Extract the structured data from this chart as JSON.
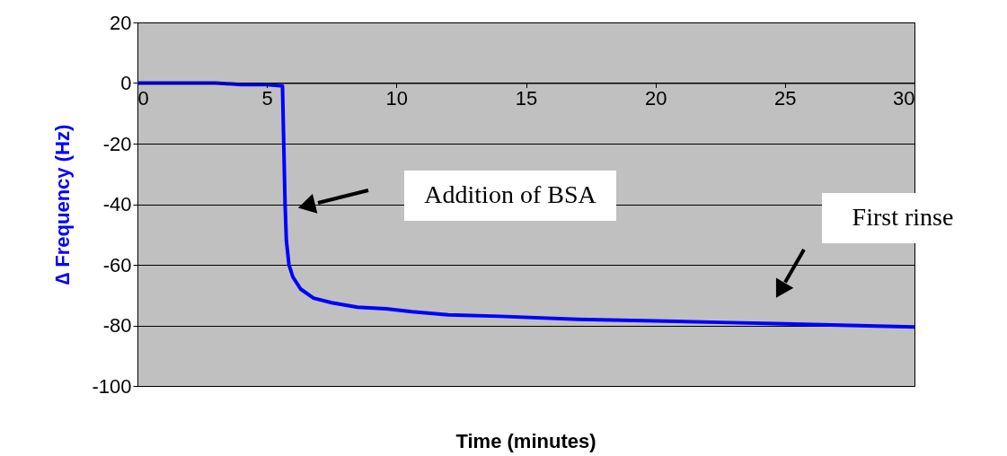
{
  "chart_data": {
    "type": "line",
    "xlabel": "Time (minutes)",
    "ylabel": "∆ Frequency (Hz)",
    "x": [
      0,
      1,
      2,
      3,
      4,
      5,
      5.6,
      5.7,
      5.75,
      5.85,
      6.0,
      6.3,
      6.8,
      7.5,
      8.5,
      9.6,
      10.6,
      12,
      14,
      17,
      20,
      22.5,
      25,
      27.5,
      30
    ],
    "series": [
      {
        "color": "#0000ff",
        "values": [
          0,
          0,
          0,
          0,
          -0.5,
          -0.5,
          -1,
          -40,
          -52,
          -60,
          -64,
          -68,
          -71,
          -72.5,
          -74,
          -74.5,
          -75.5,
          -76.5,
          -77,
          -78,
          -78.5,
          -79,
          -79.5,
          -80,
          -80.5
        ]
      }
    ],
    "xlim": [
      0,
      30
    ],
    "xticks": [
      0,
      5,
      10,
      15,
      20,
      25,
      30
    ],
    "ylim": [
      -100,
      20
    ],
    "yticks": [
      -100,
      -80,
      -60,
      -40,
      -20,
      0,
      20
    ],
    "grid": "y",
    "annotations": [
      "Addition of BSA",
      "First rinse"
    ]
  }
}
